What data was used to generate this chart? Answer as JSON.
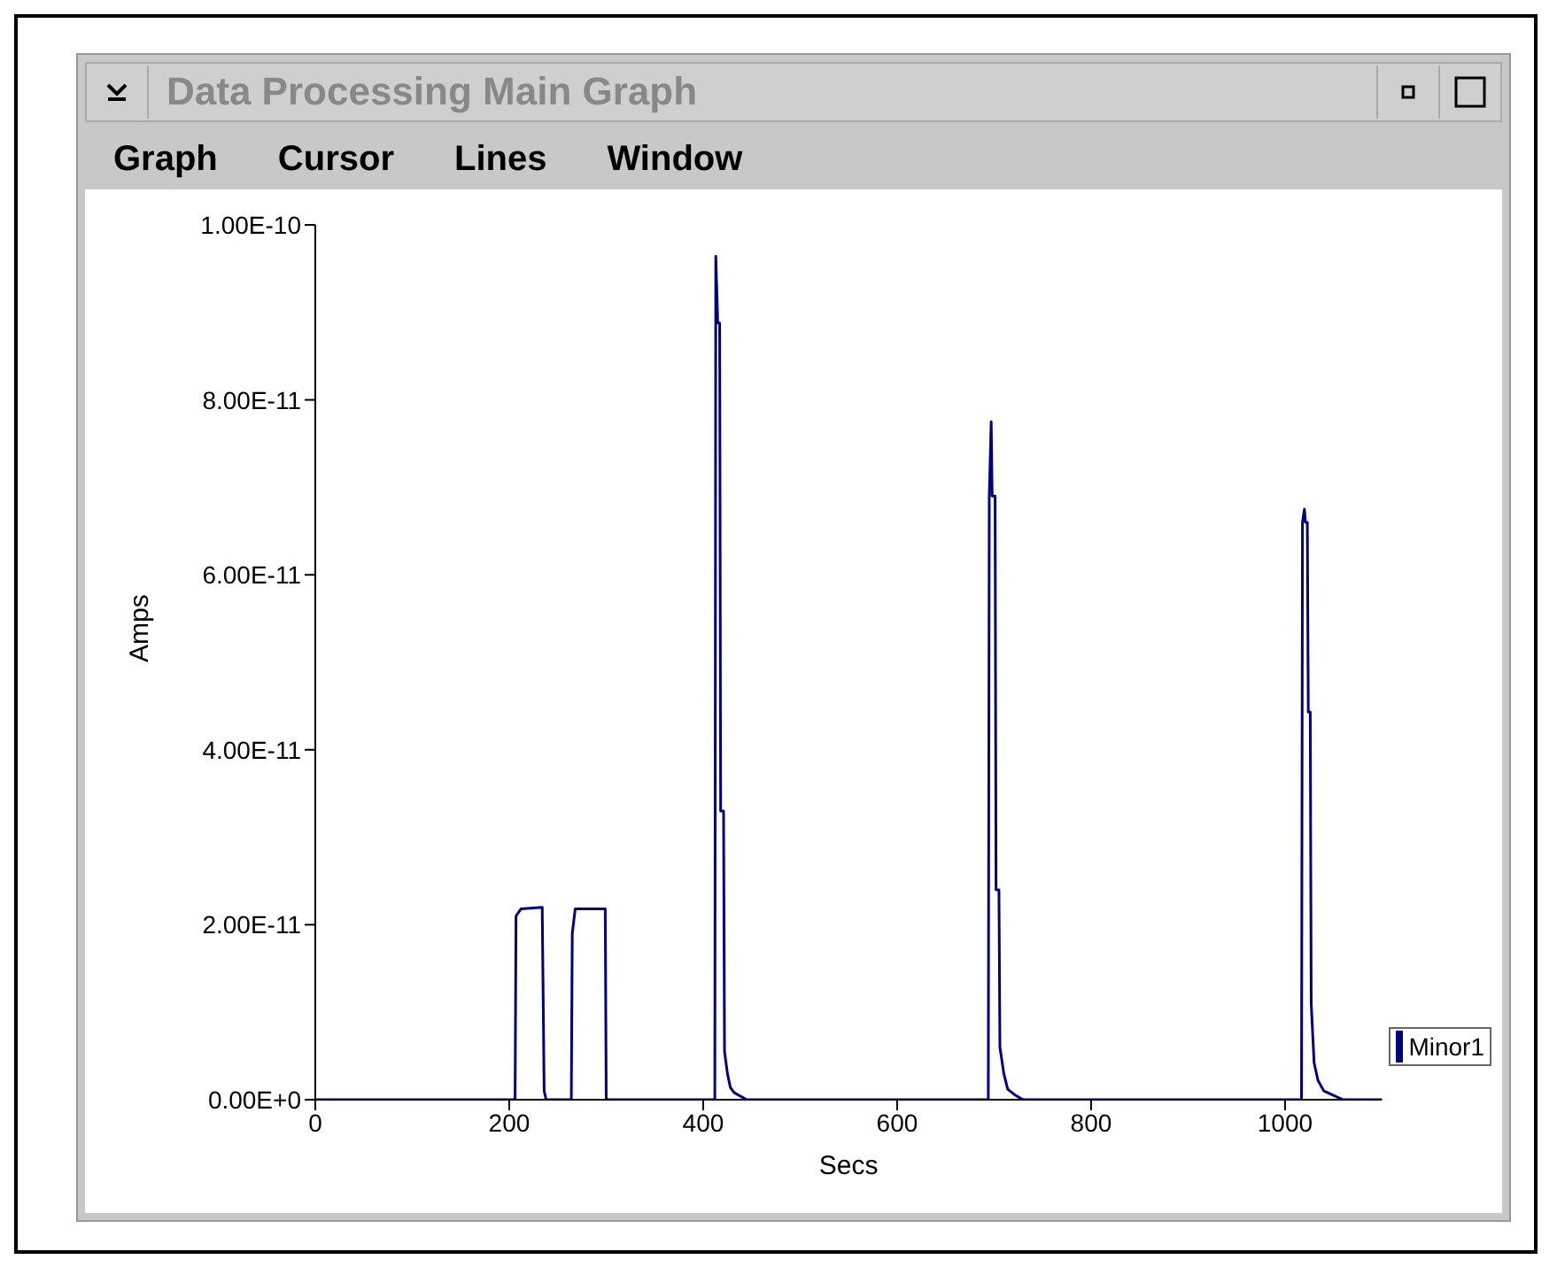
{
  "chart_data": {
    "type": "line",
    "title": "Data Processing Main Graph",
    "annotations": [
      "Graph",
      "Cursor",
      "Lines",
      "Window"
    ],
    "xlabel": "Secs",
    "ylabel": "Amps",
    "x": [
      0,
      206,
      207,
      212,
      234,
      236,
      238,
      264,
      265,
      268,
      299,
      300,
      412,
      413,
      415,
      417,
      418,
      421,
      422,
      425,
      428,
      432,
      445,
      694,
      695,
      697,
      698,
      701,
      702,
      705,
      706,
      710,
      714,
      722,
      730,
      1017,
      1018,
      1020,
      1021,
      1023,
      1024,
      1026,
      1027,
      1030,
      1034,
      1040,
      1050,
      1060,
      1100
    ],
    "series": [
      {
        "name": "Minor1",
        "color": "#000080",
        "values": [
          0,
          0,
          2.1e-11,
          2.18e-11,
          2.2e-11,
          1e-12,
          0,
          0,
          1.9e-11,
          2.18e-11,
          2.18e-11,
          0,
          0,
          9.64e-11,
          8.88e-11,
          8.88e-11,
          3.3e-11,
          3.3e-11,
          5.5e-12,
          3e-12,
          1.4e-12,
          8e-13,
          0,
          0,
          6.9e-11,
          7.75e-11,
          6.9e-11,
          6.9e-11,
          2.4e-11,
          2.4e-11,
          6e-12,
          3e-12,
          1.2e-12,
          5e-13,
          0,
          0,
          6.6e-11,
          6.75e-11,
          6.6e-11,
          6.6e-11,
          4.43e-11,
          4.43e-11,
          1.1e-11,
          4.2e-12,
          2.2e-12,
          1e-12,
          5e-13,
          0,
          0
        ]
      }
    ],
    "xlim": [
      0,
      1100
    ],
    "xticks": [
      0,
      200,
      400,
      600,
      800,
      1000
    ],
    "ylim": [
      0,
      1e-10
    ],
    "yticks": [
      {
        "value": 0,
        "label": "0.00E+0"
      },
      {
        "value": 2e-11,
        "label": "2.00E-11"
      },
      {
        "value": 4e-11,
        "label": "4.00E-11"
      },
      {
        "value": 6e-11,
        "label": "6.00E-11"
      },
      {
        "value": 8e-11,
        "label": "8.00E-11"
      },
      {
        "value": 1e-10,
        "label": "1.00E-10"
      }
    ],
    "legend": "right",
    "marker": "none",
    "line_style": "solid",
    "grid": false
  }
}
